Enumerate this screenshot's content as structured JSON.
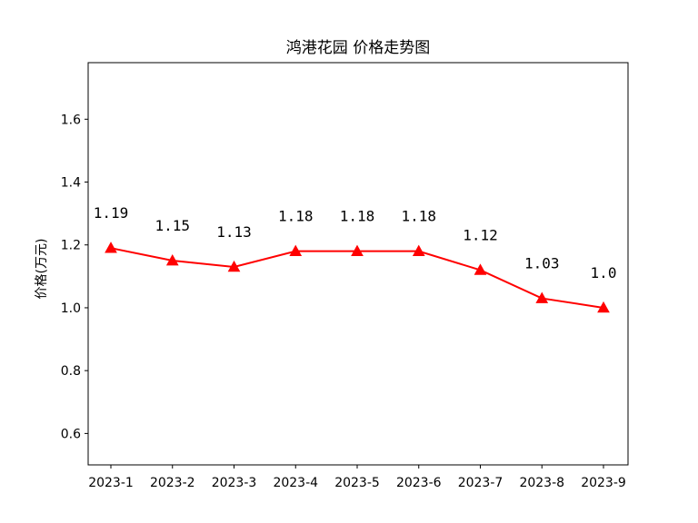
{
  "chart_data": {
    "type": "line",
    "title": "鸿港花园 价格走势图",
    "xlabel": "",
    "ylabel": "价格(万元)",
    "categories": [
      "2023-1",
      "2023-2",
      "2023-3",
      "2023-4",
      "2023-5",
      "2023-6",
      "2023-7",
      "2023-8",
      "2023-9"
    ],
    "series": [
      {
        "values": [
          1.19,
          1.15,
          1.13,
          1.18,
          1.18,
          1.18,
          1.12,
          1.03,
          1.0
        ]
      }
    ],
    "data_labels": [
      "1.19",
      "1.15",
      "1.13",
      "1.18",
      "1.18",
      "1.18",
      "1.12",
      "1.03",
      "1.0"
    ],
    "ylim": [
      0.5,
      1.78
    ],
    "yticks": [
      0.6,
      0.8,
      1.0,
      1.2,
      1.4,
      1.6
    ],
    "ytick_labels": [
      "0.6",
      "0.8",
      "1.0",
      "1.2",
      "1.4",
      "1.6"
    ],
    "grid": false,
    "line_color": "#ff0000",
    "marker": "triangle-up"
  }
}
